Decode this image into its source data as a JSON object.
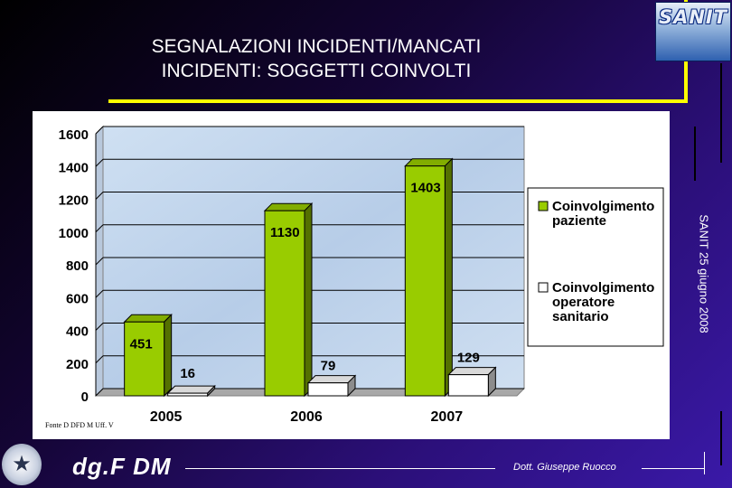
{
  "slide": {
    "title_line1": "SEGNALAZIONI INCIDENTI/MANCATI",
    "title_line2": "INCIDENTI: SOGGETTI COINVOLTI",
    "logo_text": "SANIT",
    "side_text": "SANIT 25 giugno 2008",
    "source": "Fonte D DFD M Uff. V",
    "brand": "dg.F DM",
    "author": "Dott. Giuseppe Ruocco",
    "emblem_icon": "emblem-star-icon"
  },
  "chart_data": {
    "type": "bar",
    "title": "",
    "xlabel": "",
    "ylabel": "",
    "categories": [
      "2005",
      "2006",
      "2007"
    ],
    "ylim": [
      0,
      1600
    ],
    "yticks": [
      "0",
      "200",
      "400",
      "600",
      "800",
      "1000",
      "1200",
      "1400",
      "1600"
    ],
    "grid": true,
    "legend_placement": "right",
    "series": [
      {
        "name": "Coinvolgimento paziente",
        "values": [
          451,
          1130,
          1403
        ],
        "labels": [
          "451",
          "1130",
          "1403"
        ],
        "color": "#99cc00"
      },
      {
        "name": "Coinvolgimento operatore sanitario",
        "values": [
          16,
          79,
          129
        ],
        "labels": [
          "16",
          "79",
          "129"
        ],
        "color": "#ffffff"
      }
    ],
    "legend_lines": [
      [
        "Coinvolgimento",
        "paziente"
      ],
      [
        "Coinvolgimento",
        "operatore",
        "sanitario"
      ]
    ]
  }
}
